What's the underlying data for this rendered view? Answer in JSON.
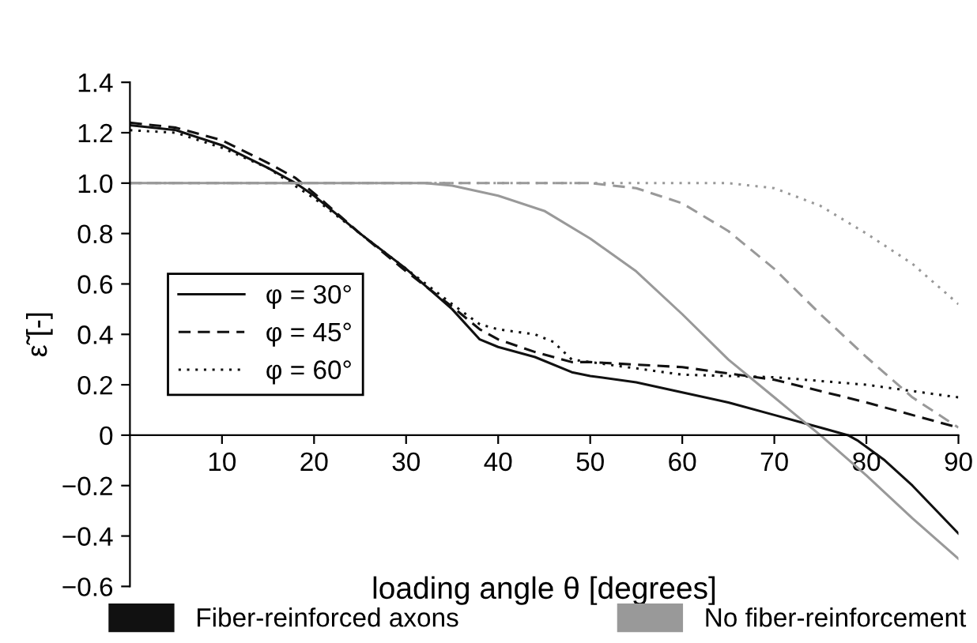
{
  "chart_data": {
    "type": "line",
    "xlabel": "loading angle θ [degrees]",
    "ylabel": "ε̃ [-]",
    "xlim": [
      0,
      90
    ],
    "xticks": [
      10,
      20,
      30,
      40,
      50,
      60,
      70,
      80,
      90
    ],
    "ylim": [
      -0.6,
      1.4
    ],
    "yticks": [
      {
        "value": -0.6,
        "label": "−0.6"
      },
      {
        "value": -0.4,
        "label": "−0.4"
      },
      {
        "value": -0.2,
        "label": "−0.2"
      },
      0,
      0.2,
      0.4,
      0.6,
      0.8,
      {
        "value": 1.0,
        "label": "1.0"
      },
      1.2,
      1.4
    ],
    "grid": false,
    "legend": "center left",
    "marker": "none",
    "annotations": [
      "Fiber-reinforced axons",
      "No fiber-reinforcement"
    ],
    "series": [
      {
        "name": "φ = 30°",
        "color": "#111111",
        "line_style": "solid",
        "x": [
          0,
          5,
          10,
          15,
          18,
          20,
          25,
          30,
          35,
          38,
          40,
          44,
          48,
          50,
          55,
          60,
          65,
          70,
          75,
          78,
          79,
          82,
          85,
          90
        ],
        "values": [
          1.23,
          1.21,
          1.15,
          1.06,
          1.0,
          0.95,
          0.8,
          0.66,
          0.5,
          0.38,
          0.35,
          0.31,
          0.25,
          0.235,
          0.21,
          0.17,
          0.13,
          0.08,
          0.03,
          0.0,
          -0.02,
          -0.1,
          -0.2,
          -0.39
        ]
      },
      {
        "name": "φ = 45°",
        "color": "#111111",
        "line_style": "dashed",
        "x": [
          0,
          5,
          10,
          15,
          18,
          20,
          25,
          30,
          35,
          38,
          40,
          44,
          48,
          50,
          60,
          70,
          80,
          90
        ],
        "values": [
          1.24,
          1.22,
          1.17,
          1.08,
          1.02,
          0.96,
          0.8,
          0.65,
          0.51,
          0.42,
          0.38,
          0.33,
          0.29,
          0.29,
          0.27,
          0.22,
          0.13,
          0.03
        ]
      },
      {
        "name": "φ = 60°",
        "color": "#111111",
        "line_style": "dotted",
        "x": [
          0,
          5,
          10,
          15,
          20,
          25,
          30,
          35,
          38,
          40,
          44,
          46,
          48,
          50,
          60,
          70,
          80,
          90
        ],
        "values": [
          1.21,
          1.2,
          1.14,
          1.06,
          0.94,
          0.8,
          0.66,
          0.52,
          0.44,
          0.42,
          0.4,
          0.37,
          0.3,
          0.29,
          0.24,
          0.23,
          0.2,
          0.15
        ]
      },
      {
        "color": "#999999",
        "line_style": "solid",
        "x": [
          0,
          10,
          20,
          32,
          35,
          40,
          45,
          50,
          55,
          60,
          65,
          70,
          75,
          80,
          85,
          90
        ],
        "values": [
          1.0,
          1.0,
          1.0,
          1.0,
          0.99,
          0.95,
          0.89,
          0.78,
          0.65,
          0.48,
          0.3,
          0.15,
          0.0,
          -0.16,
          -0.33,
          -0.49
        ]
      },
      {
        "color": "#999999",
        "line_style": "dashed",
        "x": [
          0,
          20,
          40,
          50,
          55,
          60,
          65,
          70,
          75,
          80,
          85,
          90
        ],
        "values": [
          1.0,
          1.0,
          1.0,
          1.0,
          0.98,
          0.92,
          0.81,
          0.66,
          0.48,
          0.31,
          0.15,
          0.03
        ]
      },
      {
        "color": "#999999",
        "line_style": "dotted",
        "x": [
          0,
          20,
          40,
          65,
          70,
          75,
          80,
          85,
          90
        ],
        "values": [
          1.0,
          1.0,
          1.0,
          1.0,
          0.98,
          0.91,
          0.8,
          0.68,
          0.52
        ]
      }
    ]
  }
}
